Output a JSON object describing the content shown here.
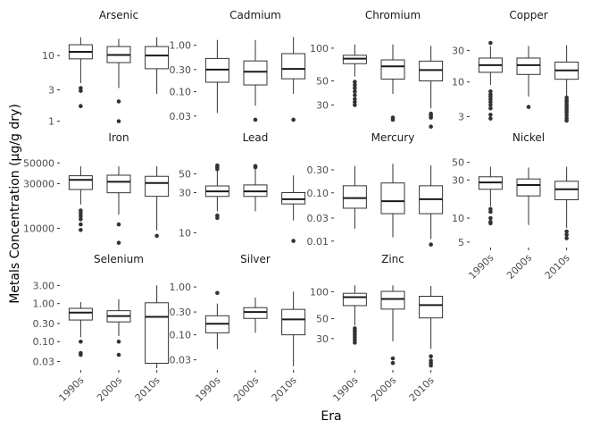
{
  "chart_data": {
    "type": "boxplot",
    "title": "",
    "xlabel": "Era",
    "ylabel": "Metals Concentration (µg/g dry)",
    "categories": [
      "1990s",
      "2000s",
      "2010s"
    ],
    "grid": false,
    "facet_scales": "free_y",
    "colors": {
      "box_fill": "#ffffff",
      "line": "#333333",
      "median": "#1a1a1a"
    },
    "panels": [
      {
        "name": "Arsenic",
        "scale": "log10",
        "ylim": [
          0.9,
          20
        ],
        "ticks": [
          {
            "value": 1,
            "label": "1"
          },
          {
            "value": 3,
            "label": "3"
          },
          {
            "value": 10,
            "label": "10"
          }
        ],
        "boxes": [
          {
            "category": "1990s",
            "whisker_low": 3.8,
            "q1": 8.9,
            "median": 11.4,
            "q3": 14.6,
            "whisker_high": 19,
            "outliers": [
              3.2,
              2.9,
              1.7
            ]
          },
          {
            "category": "2000s",
            "whisker_low": 3.2,
            "q1": 7.8,
            "median": 10.2,
            "q3": 13.7,
            "whisker_high": 18,
            "outliers": [
              2.0,
              1.0
            ]
          },
          {
            "category": "2010s",
            "whisker_low": 2.6,
            "q1": 6.3,
            "median": 10.0,
            "q3": 13.7,
            "whisker_high": 19,
            "outliers": []
          }
        ]
      },
      {
        "name": "Cadmium",
        "scale": "log10",
        "ylim": [
          0.02,
          1.6
        ],
        "ticks": [
          {
            "value": 0.03,
            "label": "0.03"
          },
          {
            "value": 0.1,
            "label": "0.10"
          },
          {
            "value": 0.3,
            "label": "0.30"
          },
          {
            "value": 1,
            "label": "1.00"
          }
        ],
        "boxes": [
          {
            "category": "1990s",
            "whisker_low": 0.035,
            "q1": 0.16,
            "median": 0.3,
            "q3": 0.52,
            "whisker_high": 1.3,
            "outliers": []
          },
          {
            "category": "2000s",
            "whisker_low": 0.05,
            "q1": 0.14,
            "median": 0.27,
            "q3": 0.46,
            "whisker_high": 1.3,
            "outliers": [
              0.025
            ]
          },
          {
            "category": "2010s",
            "whisker_low": 0.09,
            "q1": 0.19,
            "median": 0.31,
            "q3": 0.66,
            "whisker_high": 1.5,
            "outliers": [
              0.025
            ]
          }
        ]
      },
      {
        "name": "Chromium",
        "scale": "log10",
        "ylim": [
          20,
          130
        ],
        "ticks": [
          {
            "value": 30,
            "label": "30"
          },
          {
            "value": 50,
            "label": "50"
          },
          {
            "value": 100,
            "label": "100"
          }
        ],
        "boxes": [
          {
            "category": "1990s",
            "whisker_low": 55,
            "q1": 72,
            "median": 80,
            "q3": 86,
            "whisker_high": 108,
            "outliers": [
              49,
              46,
              43,
              40,
              37,
              34,
              32,
              30
            ]
          },
          {
            "category": "2000s",
            "whisker_low": 38,
            "q1": 52,
            "median": 68,
            "q3": 78,
            "whisker_high": 108,
            "outliers": [
              23,
              22
            ]
          },
          {
            "category": "2010s",
            "whisker_low": 28,
            "q1": 50,
            "median": 63,
            "q3": 76,
            "whisker_high": 105,
            "outliers": [
              25,
              24,
              23,
              19
            ]
          }
        ]
      },
      {
        "name": "Copper",
        "scale": "log10",
        "ylim": [
          2.3,
          50
        ],
        "ticks": [
          {
            "value": 3,
            "label": "3"
          },
          {
            "value": 10,
            "label": "10"
          },
          {
            "value": 30,
            "label": "30"
          }
        ],
        "boxes": [
          {
            "category": "1990s",
            "whisker_low": 9,
            "q1": 14,
            "median": 18,
            "q3": 23,
            "whisker_high": 35,
            "outliers": [
              39,
              7.2,
              6.5,
              6.0,
              5.5,
              5.0,
              4.5,
              4.0,
              3.2,
              2.8
            ]
          },
          {
            "category": "2000s",
            "whisker_low": 6,
            "q1": 13,
            "median": 18,
            "q3": 23,
            "whisker_high": 35,
            "outliers": [
              4.2
            ]
          },
          {
            "category": "2010s",
            "whisker_low": 6,
            "q1": 11,
            "median": 15,
            "q3": 20,
            "whisker_high": 36,
            "outliers": [
              5.8,
              5.3,
              5.0,
              4.6,
              4.3,
              4.0,
              3.7,
              3.4,
              3.1,
              2.8,
              2.6
            ]
          }
        ]
      },
      {
        "name": "Iron",
        "scale": "log10",
        "ylim": [
          6500,
          55000
        ],
        "ticks": [
          {
            "value": 10000,
            "label": "10000"
          },
          {
            "value": 30000,
            "label": "30000"
          },
          {
            "value": 50000,
            "label": "50000"
          }
        ],
        "boxes": [
          {
            "category": "1990s",
            "whisker_low": 18000,
            "q1": 26000,
            "median": 33000,
            "q3": 36500,
            "whisker_high": 46000,
            "outliers": [
              15500,
              14500,
              13500,
              12500,
              11000,
              9600
            ]
          },
          {
            "category": "2000s",
            "whisker_low": 14000,
            "q1": 24000,
            "median": 31500,
            "q3": 37000,
            "whisker_high": 46000,
            "outliers": [
              11000,
              7000
            ]
          },
          {
            "category": "2010s",
            "whisker_low": 9500,
            "q1": 22000,
            "median": 30500,
            "q3": 36000,
            "whisker_high": 46000,
            "outliers": [
              8300
            ]
          }
        ]
      },
      {
        "name": "Lead",
        "scale": "log10",
        "ylim": [
          7,
          75
        ],
        "ticks": [
          {
            "value": 10,
            "label": "10"
          },
          {
            "value": 30,
            "label": "30"
          },
          {
            "value": 50,
            "label": "50"
          }
        ],
        "boxes": [
          {
            "category": "1990s",
            "whisker_low": 18,
            "q1": 27,
            "median": 31,
            "q3": 36,
            "whisker_high": 55,
            "outliers": [
              63,
              60,
              57,
              16,
              15
            ]
          },
          {
            "category": "2000s",
            "whisker_low": 18,
            "q1": 27,
            "median": 31,
            "q3": 37,
            "whisker_high": 57,
            "outliers": [
              62,
              60
            ]
          },
          {
            "category": "2010s",
            "whisker_low": 14,
            "q1": 22,
            "median": 25,
            "q3": 30,
            "whisker_high": 48,
            "outliers": [
              8
            ]
          }
        ]
      },
      {
        "name": "Mercury",
        "scale": "log10",
        "ylim": [
          0.008,
          0.5
        ],
        "ticks": [
          {
            "value": 0.01,
            "label": "0.01"
          },
          {
            "value": 0.03,
            "label": "0.03"
          },
          {
            "value": 0.1,
            "label": "0.10"
          },
          {
            "value": 0.3,
            "label": "0.30"
          }
        ],
        "boxes": [
          {
            "category": "1990s",
            "whisker_low": 0.018,
            "q1": 0.048,
            "median": 0.078,
            "q3": 0.14,
            "whisker_high": 0.36,
            "outliers": []
          },
          {
            "category": "2000s",
            "whisker_low": 0.012,
            "q1": 0.037,
            "median": 0.067,
            "q3": 0.16,
            "whisker_high": 0.4,
            "outliers": []
          },
          {
            "category": "2010s",
            "whisker_low": 0.011,
            "q1": 0.037,
            "median": 0.074,
            "q3": 0.14,
            "whisker_high": 0.37,
            "outliers": [
              0.0085
            ]
          }
        ]
      },
      {
        "name": "Nickel",
        "scale": "log10",
        "ylim": [
          4.5,
          55
        ],
        "ticks": [
          {
            "value": 5,
            "label": "5"
          },
          {
            "value": 10,
            "label": "10"
          },
          {
            "value": 30,
            "label": "30"
          },
          {
            "value": 50,
            "label": "50"
          }
        ],
        "boxes": [
          {
            "category": "1990s",
            "whisker_low": 14,
            "q1": 23,
            "median": 28,
            "q3": 33,
            "whisker_high": 44,
            "outliers": [
              13,
              12,
              10,
              9,
              8.6
            ]
          },
          {
            "category": "2000s",
            "whisker_low": 8.2,
            "q1": 19,
            "median": 26,
            "q3": 31,
            "whisker_high": 43,
            "outliers": []
          },
          {
            "category": "2010s",
            "whisker_low": 7.5,
            "q1": 17,
            "median": 23,
            "q3": 29,
            "whisker_high": 44,
            "outliers": [
              6.8,
              6.2,
              5.6
            ]
          }
        ]
      },
      {
        "name": "Selenium",
        "scale": "log10",
        "ylim": [
          0.02,
          3.8
        ],
        "ticks": [
          {
            "value": 0.03,
            "label": "0.03"
          },
          {
            "value": 0.1,
            "label": "0.10"
          },
          {
            "value": 0.3,
            "label": "0.30"
          },
          {
            "value": 1,
            "label": "1.00"
          },
          {
            "value": 3,
            "label": "3.00"
          }
        ],
        "boxes": [
          {
            "category": "1990s",
            "whisker_low": 0.13,
            "q1": 0.37,
            "median": 0.58,
            "q3": 0.75,
            "whisker_high": 1.1,
            "outliers": [
              0.1,
              0.05,
              0.045
            ]
          },
          {
            "category": "2000s",
            "whisker_low": 0.14,
            "q1": 0.33,
            "median": 0.47,
            "q3": 0.65,
            "whisker_high": 1.3,
            "outliers": [
              0.1,
              0.045
            ]
          },
          {
            "category": "2010s",
            "whisker_low": 0.02,
            "q1": 0.027,
            "median": 0.45,
            "q3": 1.05,
            "whisker_high": 3.0,
            "outliers": []
          }
        ]
      },
      {
        "name": "Silver",
        "scale": "log10",
        "ylim": [
          0.02,
          1.3
        ],
        "ticks": [
          {
            "value": 0.03,
            "label": "0.03"
          },
          {
            "value": 0.1,
            "label": "0.10"
          },
          {
            "value": 0.3,
            "label": "0.30"
          },
          {
            "value": 1,
            "label": "1.00"
          }
        ],
        "boxes": [
          {
            "category": "1990s",
            "whisker_low": 0.05,
            "q1": 0.11,
            "median": 0.17,
            "q3": 0.25,
            "whisker_high": 0.45,
            "outliers": [
              0.75
            ]
          },
          {
            "category": "2000s",
            "whisker_low": 0.11,
            "q1": 0.22,
            "median": 0.3,
            "q3": 0.37,
            "whisker_high": 0.6,
            "outliers": []
          },
          {
            "category": "2010s",
            "whisker_low": 0.022,
            "q1": 0.1,
            "median": 0.21,
            "q3": 0.34,
            "whisker_high": 0.8,
            "outliers": []
          }
        ]
      },
      {
        "name": "Zinc",
        "scale": "log10",
        "ylim": [
          14,
          130
        ],
        "ticks": [
          {
            "value": 30,
            "label": "30"
          },
          {
            "value": 50,
            "label": "50"
          },
          {
            "value": 100,
            "label": "100"
          }
        ],
        "boxes": [
          {
            "category": "1990s",
            "whisker_low": 42,
            "q1": 70,
            "median": 87,
            "q3": 96,
            "whisker_high": 118,
            "outliers": [
              39,
              37,
              35,
              33,
              31,
              29,
              27
            ]
          },
          {
            "category": "2000s",
            "whisker_low": 28,
            "q1": 64,
            "median": 83,
            "q3": 101,
            "whisker_high": 118,
            "outliers": [
              18,
              16
            ]
          },
          {
            "category": "2010s",
            "whisker_low": 23,
            "q1": 51,
            "median": 71,
            "q3": 89,
            "whisker_high": 116,
            "outliers": [
              19,
              17,
              16,
              15
            ]
          }
        ]
      }
    ]
  }
}
